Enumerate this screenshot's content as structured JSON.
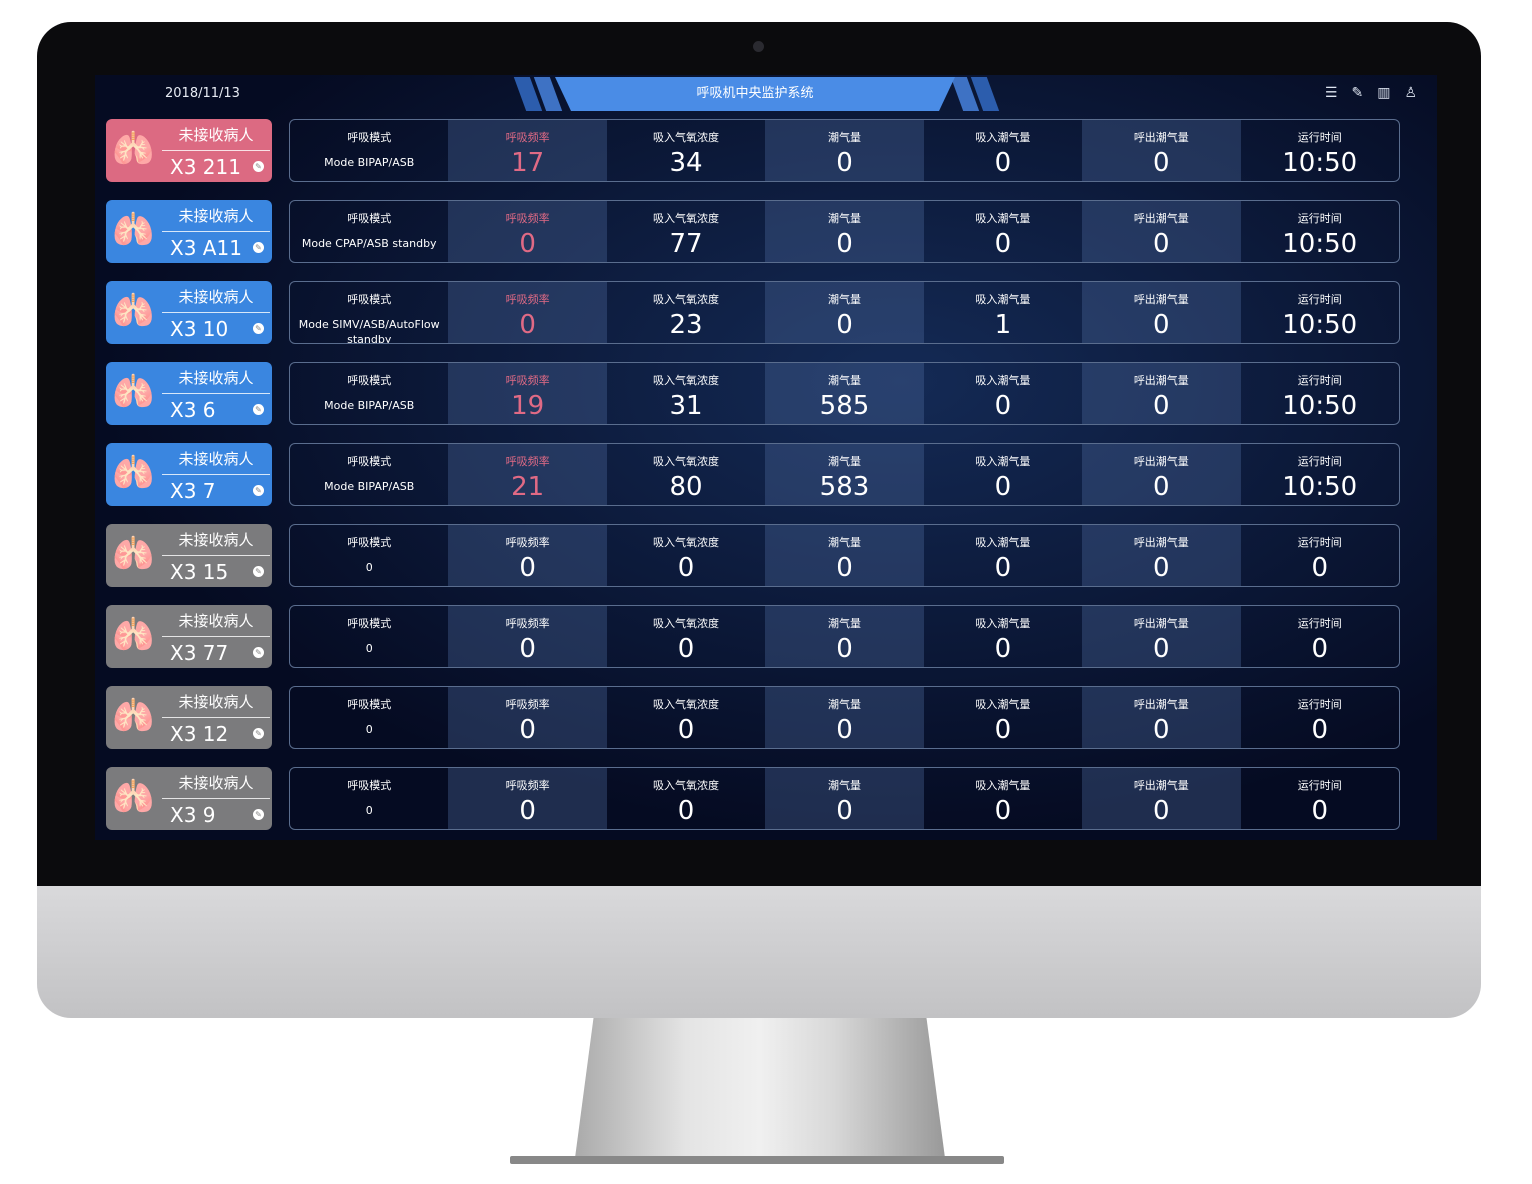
{
  "header": {
    "date": "2018/11/13",
    "title": "呼吸机中央监护系统",
    "icons": [
      "list-icon",
      "edit-icon",
      "layout-icon",
      "user-icon"
    ]
  },
  "labels": [
    "呼吸模式",
    "呼吸频率",
    "吸入气氧浓度",
    "潮气量",
    "吸入潮气量",
    "呼出潮气量",
    "运行时间"
  ],
  "colors": {
    "alarm": "#dc6a82",
    "active": "#3a86e0",
    "inactive": "#7b7b7d",
    "accent_text": "#e06a85"
  },
  "rows": [
    {
      "status": "未接收病人",
      "bed": "X3 211",
      "state": "alarm",
      "mode": "Mode BIPAP/ASB",
      "values": [
        "17",
        "34",
        "0",
        "0",
        "0",
        "10:50"
      ]
    },
    {
      "status": "未接收病人",
      "bed": "X3 A11",
      "state": "active",
      "mode": "Mode CPAP/ASB standby",
      "values": [
        "0",
        "77",
        "0",
        "0",
        "0",
        "10:50"
      ]
    },
    {
      "status": "未接收病人",
      "bed": "X3 10",
      "state": "active",
      "mode": "Mode SIMV/ASB/AutoFlow standby",
      "values": [
        "0",
        "23",
        "0",
        "1",
        "0",
        "10:50"
      ]
    },
    {
      "status": "未接收病人",
      "bed": "X3 6",
      "state": "active",
      "mode": "Mode BIPAP/ASB",
      "values": [
        "19",
        "31",
        "585",
        "0",
        "0",
        "10:50"
      ]
    },
    {
      "status": "未接收病人",
      "bed": "X3 7",
      "state": "active",
      "mode": "Mode BIPAP/ASB",
      "values": [
        "21",
        "80",
        "583",
        "0",
        "0",
        "10:50"
      ]
    },
    {
      "status": "未接收病人",
      "bed": "X3 15",
      "state": "inactive",
      "mode": "0",
      "values": [
        "0",
        "0",
        "0",
        "0",
        "0",
        "0"
      ]
    },
    {
      "status": "未接收病人",
      "bed": "X3 77",
      "state": "inactive",
      "mode": "0",
      "values": [
        "0",
        "0",
        "0",
        "0",
        "0",
        "0"
      ]
    },
    {
      "status": "未接收病人",
      "bed": "X3 12",
      "state": "inactive",
      "mode": "0",
      "values": [
        "0",
        "0",
        "0",
        "0",
        "0",
        "0"
      ]
    },
    {
      "status": "未接收病人",
      "bed": "X3 9",
      "state": "inactive",
      "mode": "0",
      "values": [
        "0",
        "0",
        "0",
        "0",
        "0",
        "0"
      ]
    }
  ]
}
